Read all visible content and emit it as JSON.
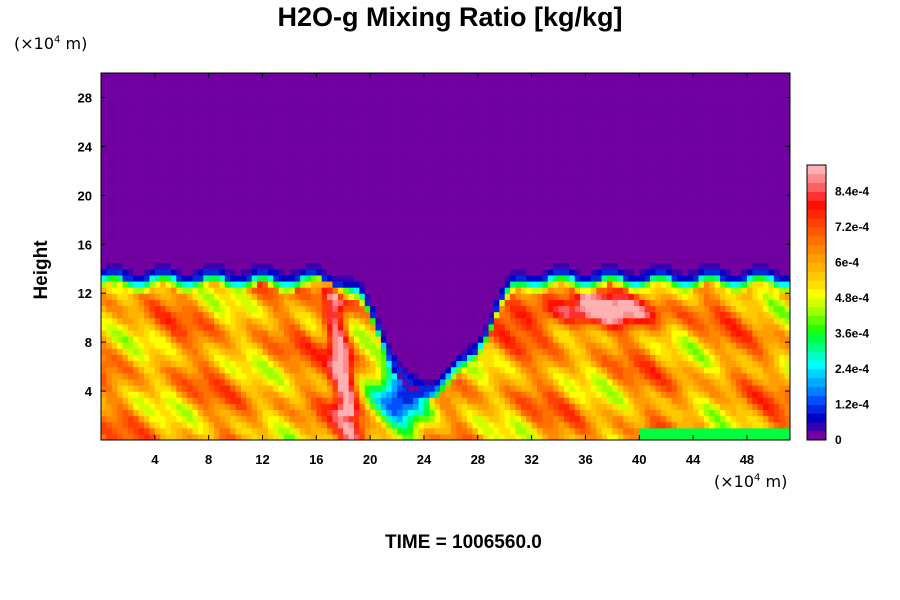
{
  "chart_data": {
    "type": "heatmap",
    "title": "H2O-g Mixing Ratio [kg/kg]",
    "ylabel": "Height",
    "xlabel": "",
    "x_unit": {
      "prefix": "(×10",
      "exp": "4",
      "suffix": " m)"
    },
    "y_unit": {
      "prefix": "(×10",
      "exp": "4",
      "suffix": " m)"
    },
    "xlim": [
      0,
      51.2
    ],
    "ylim": [
      0,
      30
    ],
    "x_ticks": [
      4,
      8,
      12,
      16,
      20,
      24,
      28,
      32,
      36,
      40,
      44,
      48
    ],
    "x_tick_labels": [
      "4",
      "8",
      "12",
      "16",
      "20",
      "24",
      "28",
      "32",
      "36",
      "40",
      "44",
      "48"
    ],
    "y_ticks": [
      4,
      8,
      12,
      16,
      20,
      24,
      28
    ],
    "y_tick_labels": [
      "4",
      "8",
      "12",
      "16",
      "20",
      "24",
      "28"
    ],
    "colorbar": {
      "min": 0,
      "max": 0.00093,
      "levels": 31,
      "tick_values": [
        0,
        0.00012,
        0.00024,
        0.00036,
        0.00048,
        0.0006,
        0.00072,
        0.00084
      ],
      "tick_labels": [
        "0",
        "1.2e-4",
        "2.4e-4",
        "3.6e-4",
        "4.8e-4",
        "6e-4",
        "7.2e-4",
        "8.4e-4"
      ],
      "colors": [
        "#7000a0",
        "#3a00b0",
        "#0000c8",
        "#0028e0",
        "#0050ff",
        "#0080ff",
        "#00aaff",
        "#00d2ff",
        "#00ffff",
        "#00ffc0",
        "#00ff80",
        "#00ff40",
        "#20ff00",
        "#60ff00",
        "#a0ff00",
        "#d0ff00",
        "#ffff00",
        "#ffe000",
        "#ffc800",
        "#ffb400",
        "#ff9e00",
        "#ff8800",
        "#ff7000",
        "#ff5800",
        "#ff4000",
        "#ff2800",
        "#ff1000",
        "#ff3030",
        "#ff6060",
        "#ff8a8a",
        "#ffb0b0"
      ]
    },
    "regions": [
      {
        "description": "dry upper layer",
        "y_range": [
          14,
          30
        ],
        "value": 0
      },
      {
        "description": "moist layer with plumes",
        "y_range": [
          0,
          13
        ],
        "value_range": [
          0.00024,
          0.00093
        ]
      }
    ]
  },
  "footer": {
    "time_label": "TIME = 1006560.0"
  }
}
